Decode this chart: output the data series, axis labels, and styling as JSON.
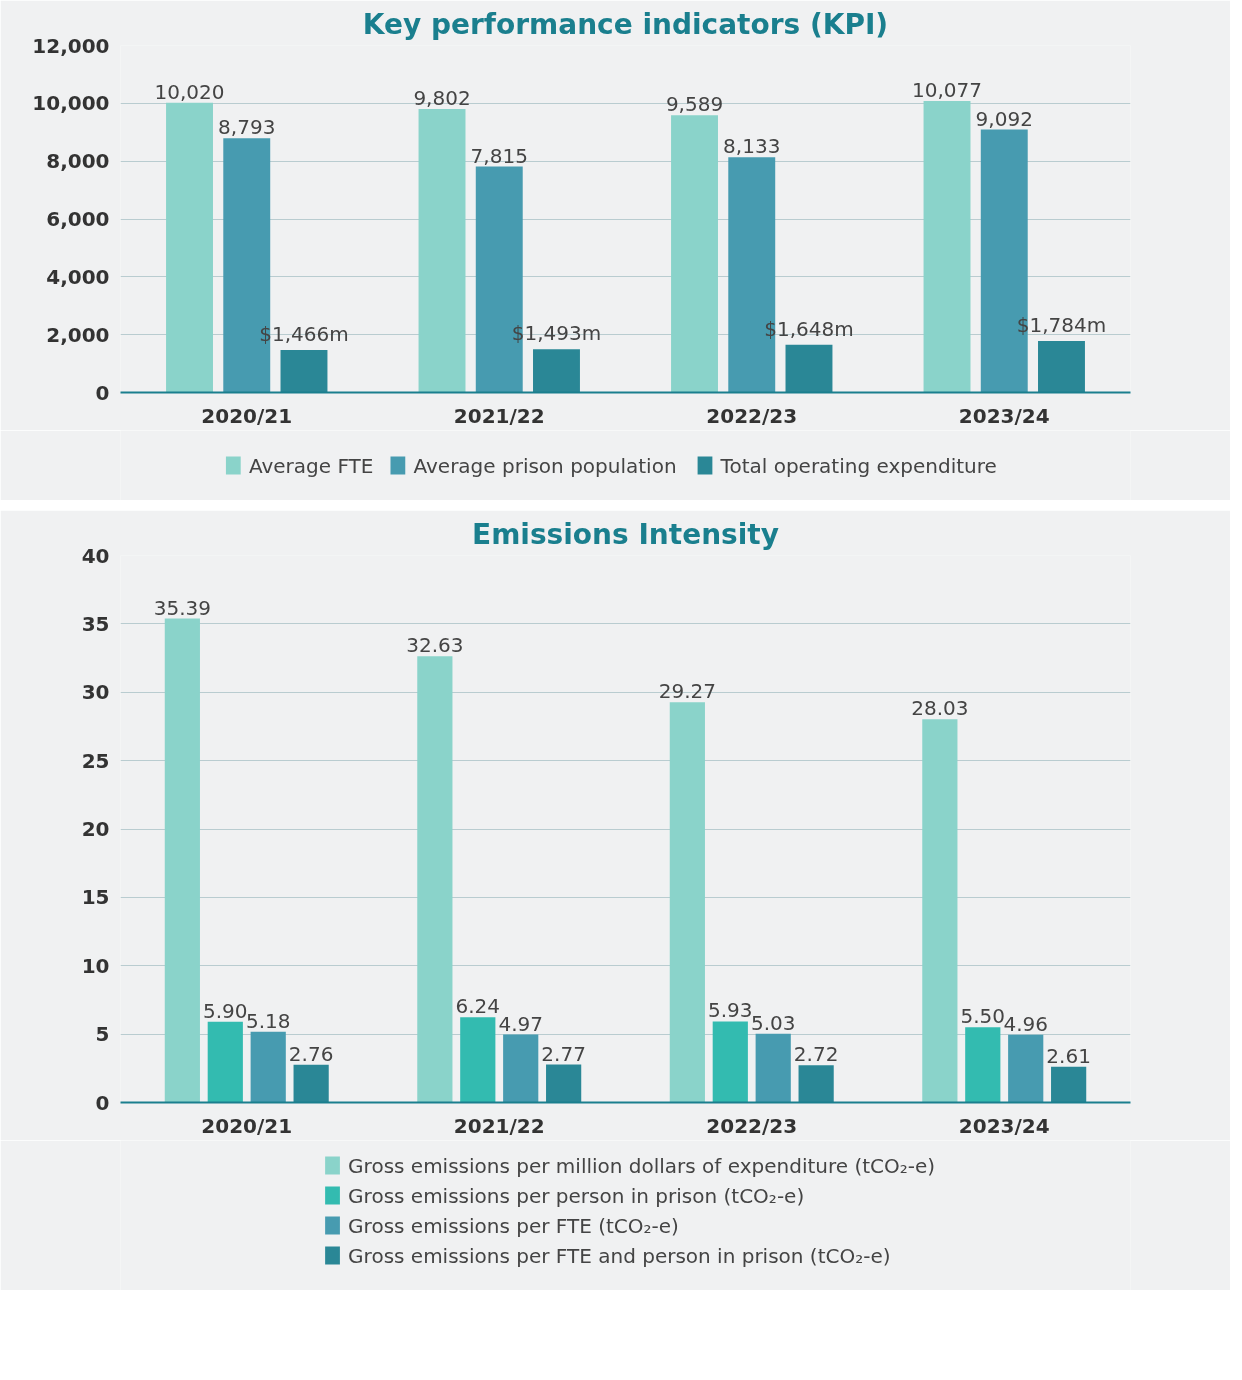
{
  "chart_data": [
    {
      "type": "bar",
      "title": "Key performance indicators (KPI)",
      "categories": [
        "2020/21",
        "2021/22",
        "2022/23",
        "2023/24"
      ],
      "series": [
        {
          "name": "Average FTE",
          "color": "#8ad3ca",
          "values": [
            10020,
            9802,
            9589,
            10077
          ],
          "value_labels": [
            "10,020",
            "9,802",
            "9,589",
            "10,077"
          ]
        },
        {
          "name": "Average prison population",
          "color": "#479bb0",
          "values": [
            8793,
            7815,
            8133,
            9092
          ],
          "value_labels": [
            "8,793",
            "7,815",
            "8,133",
            "9,092"
          ]
        },
        {
          "name": "Total operating expenditure",
          "color": "#2a8796",
          "values": [
            1466,
            1493,
            1648,
            1784
          ],
          "value_labels": [
            "$1,466m",
            "$1,493m",
            "$1,648m",
            "$1,784m"
          ]
        }
      ],
      "ylim": [
        0,
        12000
      ],
      "yticks": [
        {
          "value": 0,
          "label": "0"
        },
        {
          "value": 2000,
          "label": "2,000"
        },
        {
          "value": 4000,
          "label": "4,000"
        },
        {
          "value": 6000,
          "label": "6,000"
        },
        {
          "value": 8000,
          "label": "8,000"
        },
        {
          "value": 10000,
          "label": "10,000"
        },
        {
          "value": 12000,
          "label": "12,000"
        }
      ],
      "grid": "y",
      "legend": "bottom"
    },
    {
      "type": "bar",
      "title": "Emissions Intensity",
      "categories": [
        "2020/21",
        "2021/22",
        "2022/23",
        "2023/24"
      ],
      "series": [
        {
          "name": "Gross emissions per million dollars of expenditure (tCO₂-e)",
          "color": "#8ad3ca",
          "values": [
            35.39,
            32.63,
            29.27,
            28.03
          ],
          "value_labels": [
            "35.39",
            "32.63",
            "29.27",
            "28.03"
          ]
        },
        {
          "name": "Gross emissions per person in prison (tCO₂-e)",
          "color": "#33bbb0",
          "values": [
            5.9,
            6.24,
            5.93,
            5.5
          ],
          "value_labels": [
            "5.90",
            "6.24",
            "5.93",
            "5.50"
          ]
        },
        {
          "name": "Gross emissions per FTE (tCO₂-e)",
          "color": "#479bb0",
          "values": [
            5.18,
            4.97,
            5.03,
            4.96
          ],
          "value_labels": [
            "5.18",
            "4.97",
            "5.03",
            "4.96"
          ]
        },
        {
          "name": "Gross emissions per FTE and person in prison (tCO₂-e)",
          "color": "#2a8796",
          "values": [
            2.76,
            2.77,
            2.72,
            2.61
          ],
          "value_labels": [
            "2.76",
            "2.77",
            "2.72",
            "2.61"
          ]
        }
      ],
      "ylim": [
        0,
        40
      ],
      "yticks": [
        0,
        5,
        10,
        15,
        20,
        25,
        30,
        35,
        40
      ],
      "grid": "y",
      "legend": "bottom"
    }
  ]
}
